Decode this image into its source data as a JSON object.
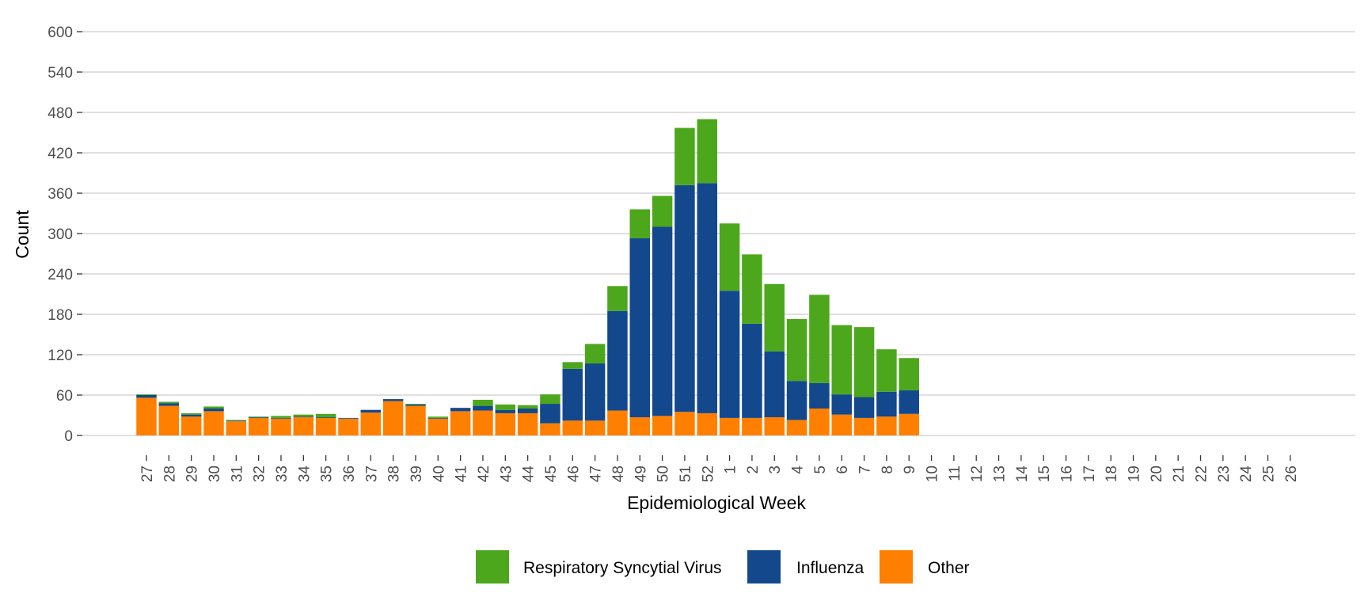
{
  "chart_data": {
    "type": "bar",
    "stacked": true,
    "xlabel": "Epidemiological Week",
    "ylabel": "Count",
    "ylim": [
      0,
      600
    ],
    "yticks": [
      0,
      60,
      120,
      180,
      240,
      300,
      360,
      420,
      480,
      540,
      600
    ],
    "grid": "horizontal",
    "legend_position": "bottom",
    "categories": [
      "27",
      "28",
      "29",
      "30",
      "31",
      "32",
      "33",
      "34",
      "35",
      "36",
      "37",
      "38",
      "39",
      "40",
      "41",
      "42",
      "43",
      "44",
      "45",
      "46",
      "47",
      "48",
      "49",
      "50",
      "51",
      "52",
      "1",
      "2",
      "3",
      "4",
      "5",
      "6",
      "7",
      "8",
      "9",
      "10",
      "11",
      "12",
      "13",
      "14",
      "15",
      "16",
      "17",
      "18",
      "19",
      "20",
      "21",
      "22",
      "23",
      "24",
      "25",
      "26"
    ],
    "series": [
      {
        "name": "Other",
        "color": "#FF7F00",
        "values": [
          56,
          44,
          28,
          36,
          21,
          26,
          25,
          27,
          26,
          25,
          34,
          51,
          44,
          25,
          36,
          37,
          33,
          33,
          18,
          22,
          22,
          37,
          27,
          29,
          35,
          33,
          26,
          26,
          27,
          23,
          40,
          31,
          26,
          28,
          32,
          0,
          0,
          0,
          0,
          0,
          0,
          0,
          0,
          0,
          0,
          0,
          0,
          0,
          0,
          0,
          0,
          0
        ]
      },
      {
        "name": "Influenza",
        "color": "#13488C",
        "values": [
          4,
          4,
          3,
          4,
          1,
          1,
          1,
          1,
          1,
          1,
          4,
          3,
          2,
          1,
          5,
          7,
          5,
          7,
          29,
          77,
          85,
          148,
          266,
          281,
          337,
          342,
          189,
          140,
          98,
          58,
          38,
          30,
          31,
          37,
          35,
          0,
          0,
          0,
          0,
          0,
          0,
          0,
          0,
          0,
          0,
          0,
          0,
          0,
          0,
          0,
          0,
          0
        ]
      },
      {
        "name": "Respiratory Syncytial Virus",
        "color": "#4CA71C",
        "values": [
          1,
          2,
          2,
          3,
          1,
          1,
          3,
          3,
          5,
          0,
          0,
          0,
          1,
          2,
          0,
          9,
          8,
          5,
          14,
          10,
          29,
          37,
          43,
          46,
          85,
          95,
          100,
          103,
          100,
          92,
          131,
          103,
          104,
          63,
          48,
          0,
          0,
          0,
          0,
          0,
          0,
          0,
          0,
          0,
          0,
          0,
          0,
          0,
          0,
          0,
          0,
          0
        ]
      }
    ],
    "legend_order": [
      "Respiratory Syncytial Virus",
      "Influenza",
      "Other"
    ]
  }
}
